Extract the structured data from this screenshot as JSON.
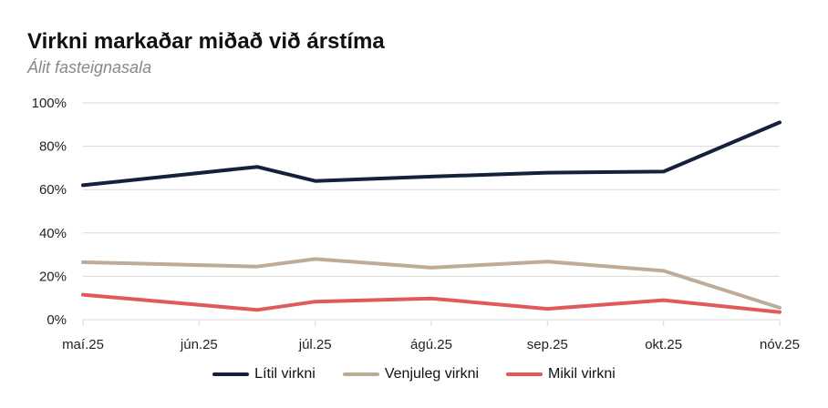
{
  "chart_data": {
    "type": "line",
    "title": "Virkni markaðar miðað við árstíma",
    "subtitle": "Álit fasteignasala",
    "categories": [
      "maí.25",
      "jún.25",
      "júl.25",
      "ágú.25",
      "sep.25",
      "okt.25",
      "nóv.25"
    ],
    "x_ticks": [
      "maí.25",
      "jún.25",
      "júl.25",
      "ágú.25",
      "sep.25",
      "okt.25",
      "nóv.25"
    ],
    "y_ticks": [
      "0%",
      "20%",
      "40%",
      "60%",
      "80%",
      "100%"
    ],
    "ylim": [
      0,
      100
    ],
    "grid": true,
    "legend_position": "bottom",
    "series": [
      {
        "name": "Lítil virkni",
        "color": "#15213a",
        "points": [
          [
            0,
            62
          ],
          [
            1.5,
            70.5
          ],
          [
            2,
            64
          ],
          [
            3,
            66
          ],
          [
            4,
            67.8
          ],
          [
            5,
            68.3
          ],
          [
            6,
            91
          ]
        ]
      },
      {
        "name": "Venjuleg virkni",
        "color": "#bfab97",
        "points": [
          [
            0,
            26.5
          ],
          [
            1.5,
            24.5
          ],
          [
            2,
            28
          ],
          [
            3,
            24
          ],
          [
            4,
            26.8
          ],
          [
            5,
            22.5
          ],
          [
            6,
            5.5
          ]
        ]
      },
      {
        "name": "Mikil virkni",
        "color": "#e05a5a",
        "points": [
          [
            0,
            11.5
          ],
          [
            1.5,
            4.5
          ],
          [
            2,
            8.3
          ],
          [
            3,
            9.8
          ],
          [
            4,
            5
          ],
          [
            5,
            9
          ],
          [
            6,
            3.5
          ]
        ]
      }
    ]
  }
}
